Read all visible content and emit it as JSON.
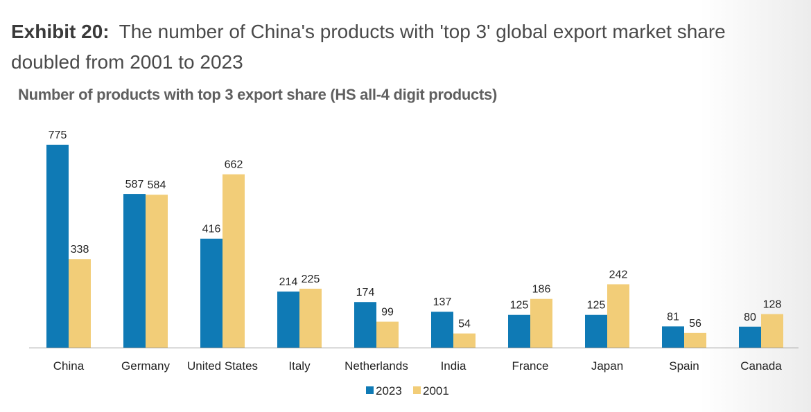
{
  "header": {
    "exhibit_label": "Exhibit 20:",
    "exhibit_title": "The number of China's products with 'top 3' global export market share doubled from 2001 to 2023"
  },
  "chart_data": {
    "type": "bar",
    "title": "Number of products with top 3 export share (HS all-4 digit products)",
    "categories": [
      "China",
      "Germany",
      "United States",
      "Italy",
      "Netherlands",
      "India",
      "France",
      "Japan",
      "Spain",
      "Canada"
    ],
    "series": [
      {
        "name": "2023",
        "color": "#0f7ab5",
        "values": [
          775,
          587,
          416,
          214,
          174,
          137,
          125,
          125,
          81,
          80
        ]
      },
      {
        "name": "2001",
        "color": "#f2cd78",
        "values": [
          338,
          584,
          662,
          225,
          99,
          54,
          186,
          242,
          56,
          128
        ]
      }
    ],
    "ylim": [
      0,
      775
    ],
    "grid": false,
    "legend": "bottom-center"
  }
}
